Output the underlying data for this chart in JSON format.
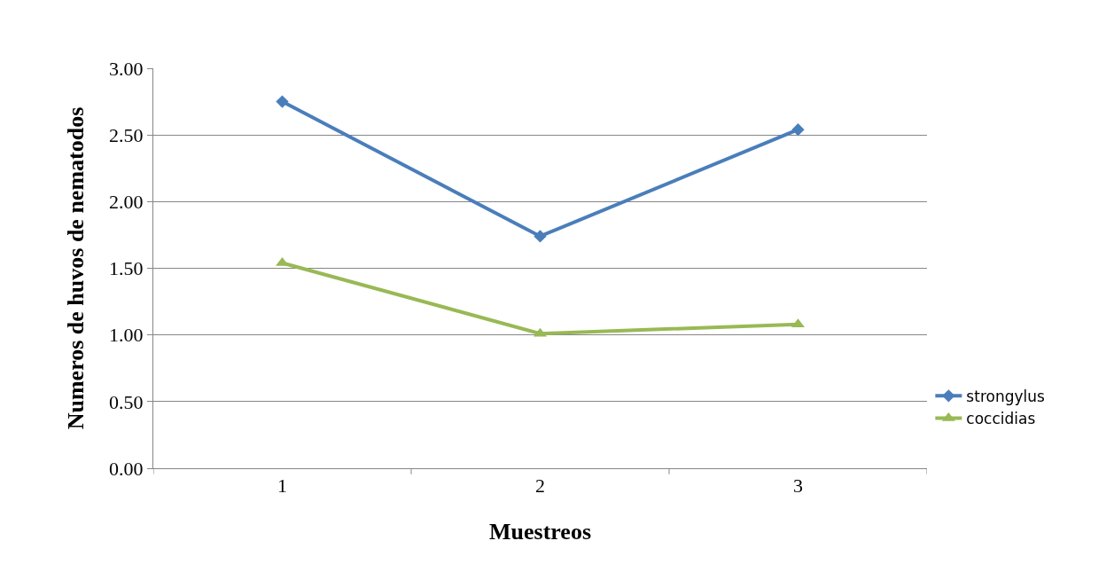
{
  "chart_data": {
    "type": "line",
    "xlabel": "Muestreos",
    "ylabel": "Numeros de huvos de nematodos",
    "categories": [
      "1",
      "2",
      "3"
    ],
    "series": [
      {
        "name": "strongylus",
        "color": "#4a7ebb",
        "values": [
          2.75,
          1.74,
          2.54
        ],
        "marker": "diamond"
      },
      {
        "name": "coccidias",
        "color": "#98b954",
        "values": [
          1.54,
          1.01,
          1.08
        ],
        "marker": "triangle"
      }
    ],
    "ylim": [
      0,
      3
    ],
    "yticks": [
      {
        "value": 0,
        "label": "0.00"
      },
      {
        "value": 0.5,
        "label": "0.50"
      },
      {
        "value": 1,
        "label": "1.00"
      },
      {
        "value": 1.5,
        "label": "1.50"
      },
      {
        "value": 2,
        "label": "2.00"
      },
      {
        "value": 2.5,
        "label": "2.50"
      },
      {
        "value": 3,
        "label": "3.00"
      }
    ],
    "grid": "y",
    "legend": "right",
    "line_style": "solid"
  }
}
